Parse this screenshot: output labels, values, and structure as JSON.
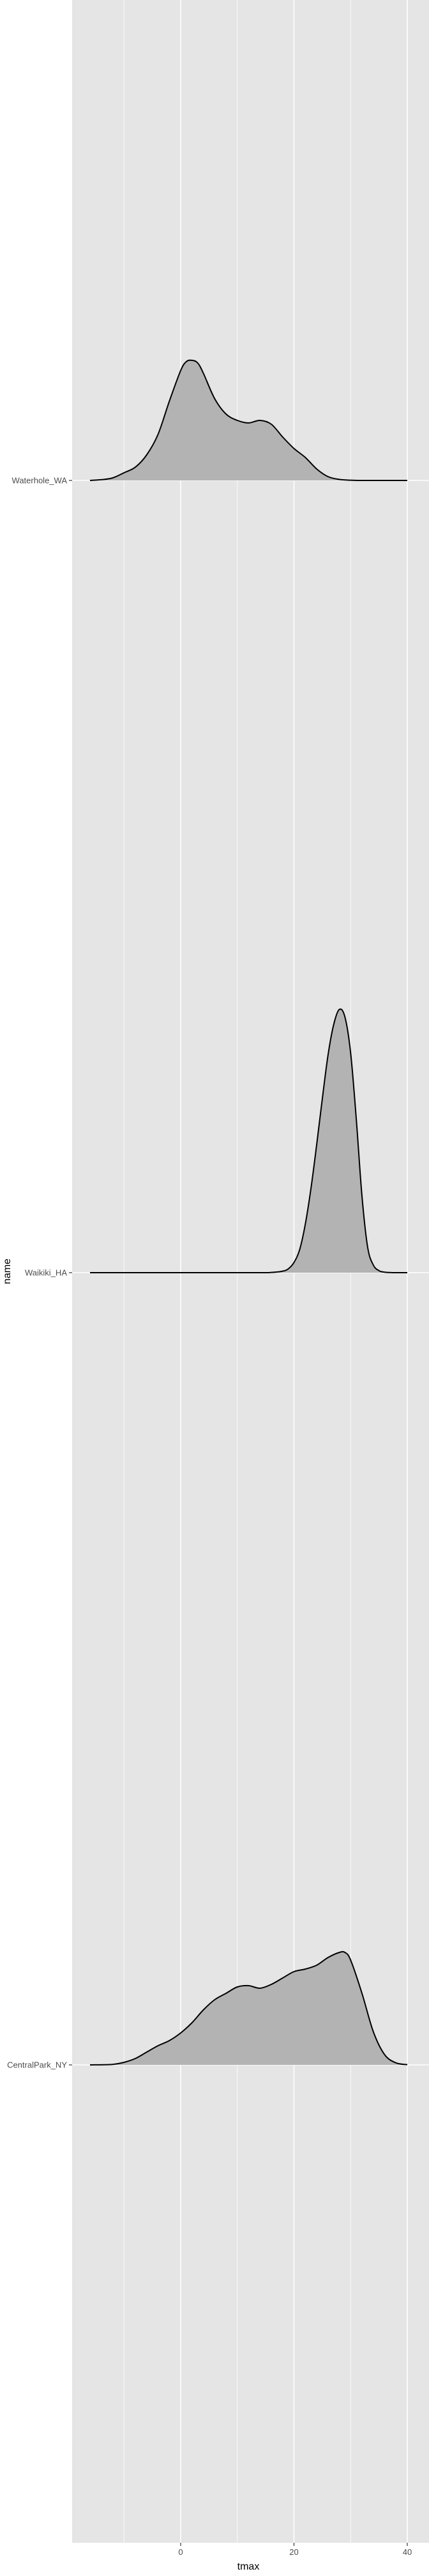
{
  "chart_data": {
    "type": "ridgeline",
    "title": "",
    "xlabel": "tmax",
    "ylabel": "name",
    "xlim": [
      -18,
      42
    ],
    "x_ticks": [
      0,
      20,
      40
    ],
    "x_tick_labels": [
      "0",
      "20",
      "40"
    ],
    "grid": true,
    "colors": {
      "panel": "#e5e5e5",
      "grid": "#ffffff",
      "fill": "#b3b3b3",
      "stroke": "#000000",
      "text": "#4d4d4d"
    },
    "categories": [
      "Waterhole_WA",
      "Waikiki_HA",
      "CentralPark_NY"
    ],
    "series": [
      {
        "name": "Waterhole_WA",
        "x": [
          -16,
          -14,
          -12,
          -10,
          -8,
          -6,
          -4,
          -2,
          0,
          1,
          2,
          3,
          4,
          6,
          8,
          10,
          12,
          14,
          16,
          18,
          20,
          22,
          24,
          26,
          28,
          30,
          32,
          34,
          36,
          38,
          40
        ],
        "density": [
          0.0,
          0.003,
          0.01,
          0.03,
          0.052,
          0.1,
          0.18,
          0.31,
          0.43,
          0.465,
          0.47,
          0.46,
          0.42,
          0.32,
          0.26,
          0.235,
          0.225,
          0.235,
          0.22,
          0.17,
          0.125,
          0.09,
          0.045,
          0.015,
          0.004,
          0.001,
          0.0,
          0.0,
          0.0,
          0.0,
          0.0
        ]
      },
      {
        "name": "Waikiki_HA",
        "x": [
          -16,
          12,
          16,
          18,
          19,
          20,
          21,
          22,
          23,
          24,
          25,
          26,
          27,
          28,
          29,
          30,
          31,
          32,
          33,
          34,
          35,
          36,
          38,
          40
        ],
        "density": [
          0.0,
          0.0,
          0.001,
          0.006,
          0.015,
          0.04,
          0.09,
          0.19,
          0.33,
          0.5,
          0.68,
          0.85,
          0.97,
          1.03,
          1.0,
          0.86,
          0.6,
          0.3,
          0.1,
          0.03,
          0.008,
          0.002,
          0.0,
          0.0
        ]
      },
      {
        "name": "CentralPark_NY",
        "x": [
          -16,
          -12,
          -10,
          -8,
          -6,
          -4,
          -2,
          0,
          2,
          4,
          6,
          8,
          10,
          12,
          14,
          16,
          18,
          20,
          22,
          24,
          26,
          28,
          29,
          30,
          32,
          34,
          36,
          38,
          40
        ],
        "density": [
          0.0,
          0.002,
          0.01,
          0.025,
          0.05,
          0.075,
          0.095,
          0.125,
          0.165,
          0.215,
          0.255,
          0.28,
          0.305,
          0.31,
          0.3,
          0.315,
          0.34,
          0.365,
          0.375,
          0.39,
          0.42,
          0.44,
          0.44,
          0.41,
          0.28,
          0.13,
          0.04,
          0.008,
          0.001
        ]
      }
    ]
  }
}
